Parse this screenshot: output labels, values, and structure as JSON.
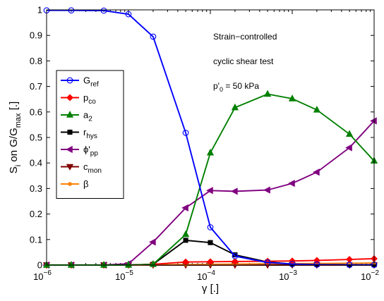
{
  "chart_data": {
    "type": "line",
    "title": "",
    "xlabel": "γ [.]",
    "ylabel": "S",
    "ylabel_sub": "i",
    "ylabel_mid": " on G/G",
    "ylabel_sub2": "max",
    "ylabel_end": " [.]",
    "xscale": "log",
    "xlim": [
      1e-06,
      0.01
    ],
    "ylim": [
      0,
      1
    ],
    "grid": false,
    "legend_position": "left",
    "x": [
      1e-06,
      2e-06,
      5e-06,
      1e-05,
      2e-05,
      5e-05,
      0.0001,
      0.0002,
      0.0005,
      0.001,
      0.002,
      0.005,
      0.01
    ],
    "x_ticks": [
      {
        "value": 1e-06,
        "base": "10",
        "exp": "−6"
      },
      {
        "value": 1e-05,
        "base": "10",
        "exp": "−5"
      },
      {
        "value": 0.0001,
        "base": "10",
        "exp": "−4"
      },
      {
        "value": 0.001,
        "base": "10",
        "exp": "−3"
      },
      {
        "value": 0.01,
        "base": "10",
        "exp": "−2"
      }
    ],
    "y_ticks": [
      "0",
      "0.1",
      "0.2",
      "0.3",
      "0.4",
      "0.5",
      "0.6",
      "0.7",
      "0.8",
      "0.9",
      "1"
    ],
    "annotations": {
      "line1": "Strain−controlled",
      "line2": "cyclic shear test",
      "line3_main": "p'",
      "line3_sub": "0",
      "line3_end": " = 50 kPa"
    },
    "series": [
      {
        "label_main": "G",
        "label_sub": "ref",
        "color": "#0000ff",
        "marker": "circle",
        "values": [
          0.998,
          0.998,
          0.997,
          0.983,
          0.895,
          0.518,
          0.148,
          0.035,
          0.01,
          0.004,
          0.002,
          0.001,
          0.001
        ]
      },
      {
        "label_main": "p",
        "label_sub": "co",
        "color": "#ff0000",
        "marker": "diamond",
        "values": [
          0.0,
          0.0,
          0.0,
          0.0,
          0.003,
          0.012,
          0.013,
          0.014,
          0.015,
          0.016,
          0.018,
          0.022,
          0.025
        ]
      },
      {
        "label_main": "a",
        "label_sub": "2",
        "color": "#008000",
        "marker": "triangle-up",
        "values": [
          0.0,
          0.0,
          0.0,
          0.0,
          0.003,
          0.12,
          0.44,
          0.617,
          0.67,
          0.652,
          0.608,
          0.513,
          0.408
        ]
      },
      {
        "label_main": "r",
        "label_sub": "hys",
        "color": "#000000",
        "marker": "square",
        "values": [
          0.0,
          0.0,
          0.0,
          0.0,
          0.003,
          0.097,
          0.088,
          0.04,
          0.012,
          0.004,
          0.002,
          0.001,
          0.001
        ]
      },
      {
        "label_main": "ϕ'",
        "label_sub": "pp",
        "color": "#800080",
        "marker": "triangle-left",
        "values": [
          0.0,
          0.0,
          0.0,
          0.005,
          0.09,
          0.224,
          0.292,
          0.289,
          0.294,
          0.32,
          0.364,
          0.46,
          0.565
        ]
      },
      {
        "label_main": "c",
        "label_sub": "mon",
        "color": "#800000",
        "marker": "triangle-down",
        "values": [
          0.0,
          0.0,
          0.0,
          0.0,
          0.0,
          0.0,
          0.0,
          0.0,
          0.0,
          0.0,
          0.0,
          0.0,
          0.0
        ]
      },
      {
        "label_main": "β",
        "label_sub": "",
        "color": "#ff8000",
        "marker": "dot",
        "values": [
          0.0,
          0.0,
          0.0,
          0.0,
          0.001,
          0.002,
          0.003,
          0.004,
          0.005,
          0.006,
          0.006,
          0.007,
          0.008
        ]
      }
    ]
  }
}
